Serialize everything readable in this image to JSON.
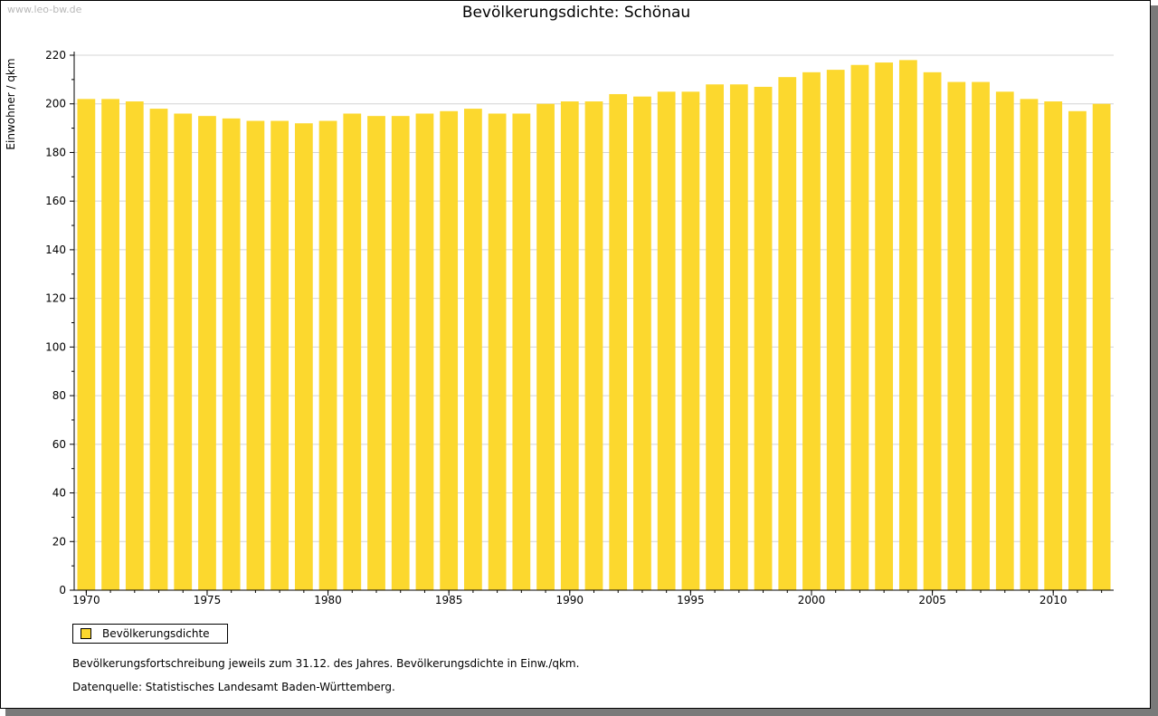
{
  "watermark": "www.leo-bw.de",
  "legend": {
    "label": "Bevölkerungsdichte",
    "swatch_color": "#fcd82e"
  },
  "notes": {
    "line1": "Bevölkerungsfortschreibung jeweils zum 31.12. des Jahres. Bevölkerungsdichte in Einw./qkm.",
    "line2": "Datenquelle: Statistisches Landesamt Baden-Württemberg."
  },
  "chart_data": {
    "type": "bar",
    "title": "Bevölkerungsdichte: Schönau",
    "xlabel": "",
    "ylabel": "Einwohner / qkm",
    "ylim": [
      0,
      220
    ],
    "yticks": [
      0,
      20,
      40,
      60,
      80,
      100,
      120,
      140,
      160,
      180,
      200,
      220
    ],
    "xtick_labels": [
      "1970",
      "1975",
      "1980",
      "1985",
      "1990",
      "1995",
      "2000",
      "2005",
      "2010"
    ],
    "bar_color": "#fcd82e",
    "grid": true,
    "categories": [
      1970,
      1971,
      1972,
      1973,
      1974,
      1975,
      1976,
      1977,
      1978,
      1979,
      1980,
      1981,
      1982,
      1983,
      1984,
      1985,
      1986,
      1987,
      1988,
      1989,
      1990,
      1991,
      1992,
      1993,
      1994,
      1995,
      1996,
      1997,
      1998,
      1999,
      2000,
      2001,
      2002,
      2003,
      2004,
      2005,
      2006,
      2007,
      2008,
      2009,
      2010,
      2011,
      2012
    ],
    "values": [
      202,
      202,
      201,
      198,
      196,
      195,
      194,
      193,
      193,
      192,
      193,
      196,
      195,
      195,
      196,
      197,
      198,
      196,
      196,
      200,
      201,
      201,
      204,
      203,
      205,
      205,
      208,
      208,
      207,
      211,
      213,
      214,
      216,
      217,
      218,
      213,
      209,
      209,
      205,
      202,
      201,
      197,
      200
    ]
  }
}
